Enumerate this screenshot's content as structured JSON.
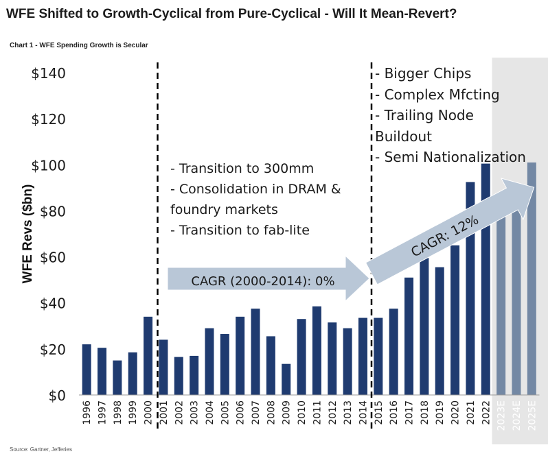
{
  "title": "WFE Shifted to Growth-Cyclical from Pure-Cyclical - Will It Mean-Revert?",
  "subtitle": "Chart 1 - WFE Spending Growth is Secular",
  "source": "Source: Gartner, Jefferies",
  "colors": {
    "actual": "#1f3b70",
    "estimate": "#7388a4",
    "shade": "#e6e6e6",
    "arrow": "#b9c7d7"
  },
  "chart_data": {
    "type": "bar",
    "ylabel": "WFE Revs ($bn)",
    "ylim": [
      0,
      140
    ],
    "yticks": [
      "$0",
      "$20",
      "$40",
      "$60",
      "$80",
      "$100",
      "$120",
      "$140"
    ],
    "categories": [
      "1996",
      "1997",
      "1998",
      "1999",
      "2000",
      "2001",
      "2002",
      "2003",
      "2004",
      "2005",
      "2006",
      "2007",
      "2008",
      "2009",
      "2010",
      "2011",
      "2012",
      "2013",
      "2014",
      "2015",
      "2016",
      "2017",
      "2018",
      "2019",
      "2020",
      "2021",
      "2022",
      "2023E",
      "2024E",
      "2025E"
    ],
    "values": [
      22,
      20.5,
      15,
      18.5,
      34,
      24,
      16.5,
      17,
      29,
      26.5,
      34,
      37.5,
      25.5,
      13.5,
      33,
      38.5,
      31.5,
      29,
      33.5,
      33.5,
      37.5,
      51,
      59.5,
      55.5,
      65,
      92.5,
      100.5,
      81.5,
      90.5,
      101
    ],
    "estimate_from_index": 27,
    "annotations": {
      "cagr_flat": "CAGR (2000-2014): 0%",
      "cagr_growth": "CAGR: 12%",
      "middle_notes": [
        "- Transition to 300mm",
        "- Consolidation in DRAM &",
        "foundry markets",
        "- Transition to fab-lite"
      ],
      "right_notes": [
        "- Bigger Chips",
        "- Complex Mfcting",
        "- Trailing Node",
        "Buildout",
        "- Semi Nationalization"
      ]
    }
  }
}
